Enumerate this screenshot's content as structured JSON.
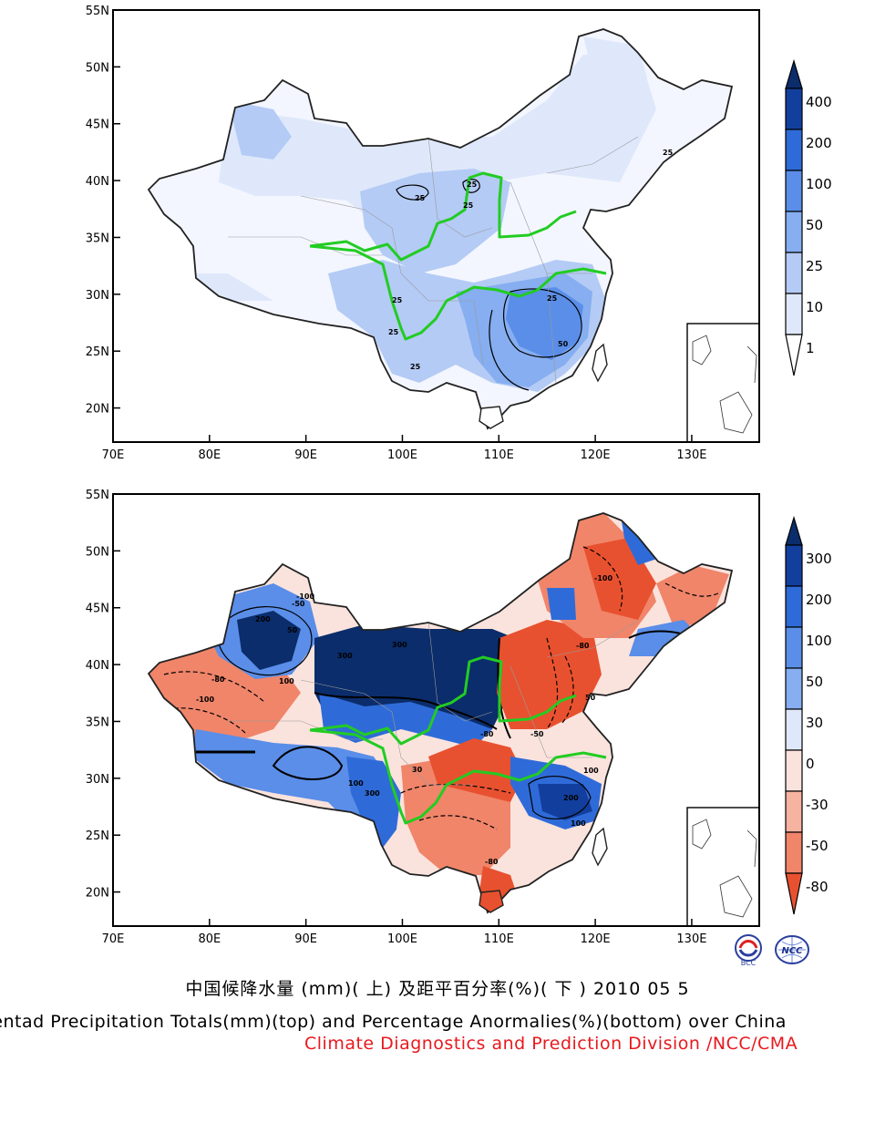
{
  "caption": {
    "chinese": "中国候降水量 (mm)( 上) 及距平百分率(%)( 下 ) 2010 05 5",
    "english": "Pentad Precipitation Totals(mm)(top) and Percentage Anormalies(%)(bottom) over China",
    "organization": "Climate Diagnostics and Prediction Division /NCC/CMA"
  },
  "logos": [
    {
      "name": "bcc-logo",
      "text": "BCC"
    },
    {
      "name": "ncc-logo",
      "text": "NCC"
    }
  ],
  "axes": {
    "lat_labels": [
      "55N",
      "50N",
      "45N",
      "40N",
      "35N",
      "30N",
      "25N",
      "20N"
    ],
    "lon_labels": [
      "70E",
      "80E",
      "90E",
      "100E",
      "110E",
      "120E",
      "130E"
    ],
    "lat_range": [
      17,
      55
    ],
    "lon_range": [
      70,
      137
    ]
  },
  "colors": {
    "river": "#22cc22",
    "frame": "#000000"
  },
  "top_panel": {
    "title": "Pentad Precipitation Totals (mm)",
    "colorbar": {
      "labels": [
        "400",
        "200",
        "100",
        "50",
        "25",
        "10",
        "1"
      ],
      "colors": [
        "#0b2d6b",
        "#123f9e",
        "#2f6bd8",
        "#5a8ee8",
        "#86aef0",
        "#b4cbf5",
        "#dfe8fb",
        "#ffffff"
      ]
    },
    "contour_labels": [
      "25",
      "25",
      "25",
      "25",
      "25",
      "25",
      "25",
      "50",
      "25"
    ]
  },
  "bottom_panel": {
    "title": "Percentage Anomalies (%)",
    "colorbar": {
      "labels": [
        "300",
        "200",
        "100",
        "50",
        "30",
        "0",
        "-30",
        "-50",
        "-80"
      ],
      "colors": [
        "#0b2d6b",
        "#123f9e",
        "#2f6bd8",
        "#5a8ee8",
        "#86aef0",
        "#dfe8fb",
        "#fbe3dd",
        "#f5b3a0",
        "#f0856a",
        "#e8512f"
      ]
    },
    "contour_labels": [
      "-100",
      "-50",
      "200",
      "300",
      "50",
      "-100",
      "-80",
      "100",
      "300",
      "-50",
      "-80",
      "100",
      "-80",
      "200",
      "100",
      "50",
      "-100",
      "30",
      "-80",
      "300",
      "100"
    ]
  }
}
